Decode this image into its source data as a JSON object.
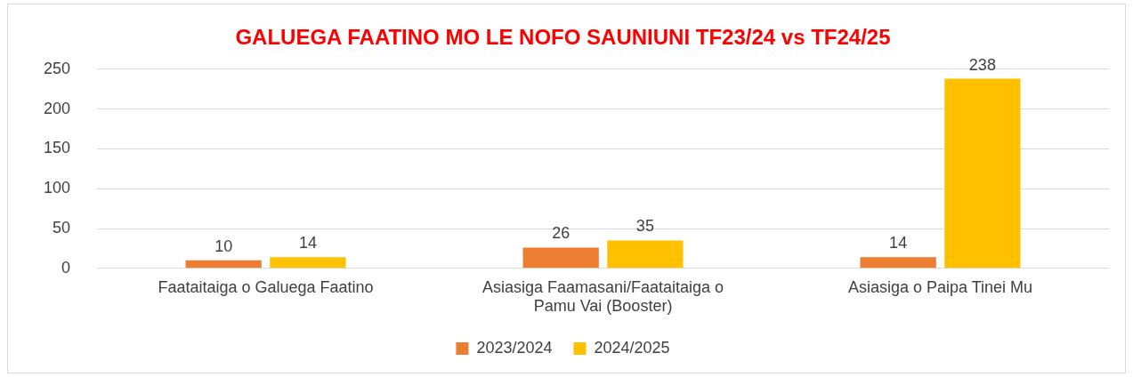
{
  "chart_data": {
    "type": "bar",
    "title": "GALUEGA FAATINO MO LE NOFO SAUNIUNI TF23/24 vs TF24/25",
    "categories": [
      "Faataitaiga o Galuega Faatino",
      "Asiasiga Faamasani/Faataitaiga o Pamu Vai (Booster)",
      "Asiasiga o Paipa Tinei Mu"
    ],
    "series": [
      {
        "name": "2023/2024",
        "color": "#ed7d31",
        "values": [
          10,
          26,
          14
        ]
      },
      {
        "name": "2024/2025",
        "color": "#ffc000",
        "values": [
          14,
          35,
          238
        ]
      }
    ],
    "ylim": [
      0,
      250
    ],
    "yticks": [
      0,
      50,
      100,
      150,
      200,
      250
    ],
    "grid": "y",
    "legend": "bottom",
    "data_labels": true
  }
}
